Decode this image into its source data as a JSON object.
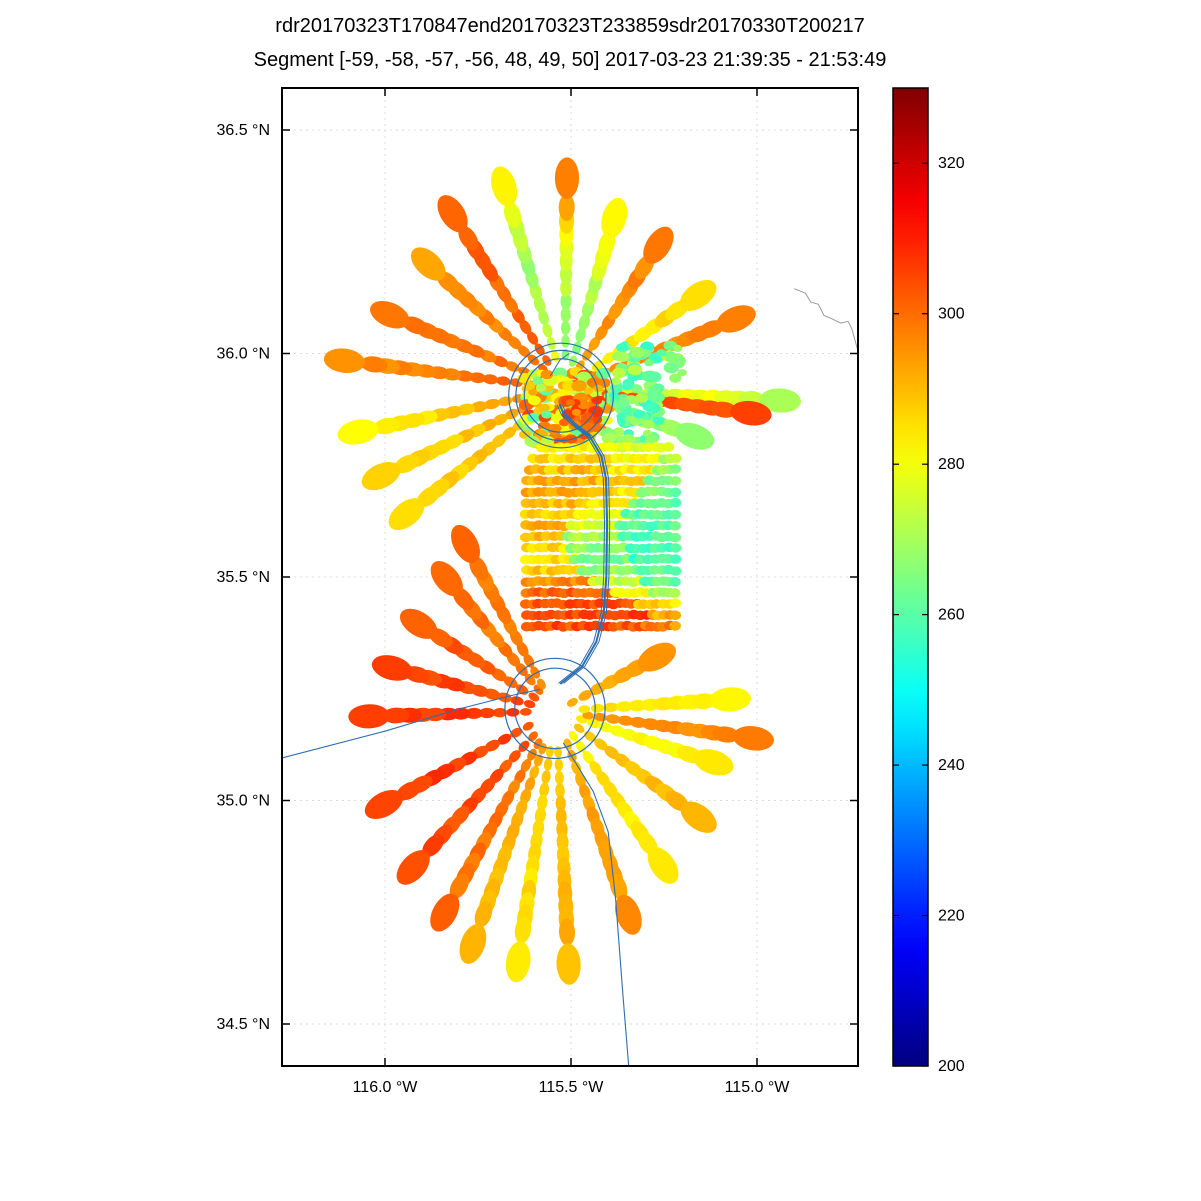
{
  "title": {
    "line1": "rdr20170323T170847end20170323T233859sdr20170330T200217",
    "line2": "Segment [-59, -58, -57, -56, 48, 49, 50] 2017-03-23 21:39:35 - 21:53:49"
  },
  "chart_data": {
    "type": "scatter",
    "projection": "lon-lat",
    "title": "rdr20170323T170847end20170323T233859sdr20170330T200217",
    "subtitle": "Segment [-59, -58, -57, -56, 48, 49, 50] 2017-03-23 21:39:35 - 21:53:49",
    "xlim_deg_w": [
      116.277,
      114.728
    ],
    "ylim_deg_n": [
      34.406,
      36.594
    ],
    "grid": "dotted-faint",
    "x_ticks": [
      {
        "value": 116.0,
        "label": "116.0 °W"
      },
      {
        "value": 115.5,
        "label": "115.5 °W"
      },
      {
        "value": 115.0,
        "label": "115.0 °W"
      }
    ],
    "y_ticks": [
      {
        "value": 36.5,
        "label": "36.5 °N"
      },
      {
        "value": 36.0,
        "label": "36.0 °N"
      },
      {
        "value": 35.5,
        "label": "35.5 °N"
      },
      {
        "value": 35.0,
        "label": "35.0 °N"
      },
      {
        "value": 34.5,
        "label": "34.5 °N"
      }
    ],
    "colorbar": {
      "colormap": "jet",
      "min": 200,
      "max": 330,
      "ticks": [
        320,
        300,
        280,
        260,
        240,
        220,
        200
      ],
      "position": "right"
    },
    "fans": [
      {
        "name": "upper-scan-fan",
        "center": [
          115.516,
          35.921
        ],
        "rays": [
          {
            "end": [
              116.081,
              35.981
            ],
            "vals": [
              303,
              300,
              298,
              296
            ]
          },
          {
            "end": [
              116.046,
              35.829
            ],
            "vals": [
              298,
              292,
              286,
              283
            ]
          },
          {
            "end": [
              115.987,
              35.735
            ],
            "vals": [
              296,
              291,
              287,
              285
            ]
          },
          {
            "end": [
              115.922,
              35.654
            ],
            "vals": [
              294,
              290,
              288,
              287
            ]
          },
          {
            "end": [
              115.965,
              36.079
            ],
            "vals": [
              301,
              299,
              298,
              297
            ]
          },
          {
            "end": [
              115.866,
              36.187
            ],
            "vals": [
              299,
              297,
              296,
              295
            ]
          },
          {
            "end": [
              115.804,
              36.294
            ],
            "vals": [
              301,
              300,
              301,
              302
            ]
          },
          {
            "end": [
              115.672,
              36.352
            ],
            "vals": [
              283,
              272,
              268,
              281
            ]
          },
          {
            "end": [
              115.511,
              36.37
            ],
            "vals": [
              270,
              265,
              278,
              297
            ]
          },
          {
            "end": [
              115.39,
              36.285
            ],
            "vals": [
              264,
              268,
              273,
              283
            ]
          },
          {
            "end": [
              115.277,
              36.227
            ],
            "vals": [
              290,
              294,
              296,
              297
            ]
          },
          {
            "end": [
              115.175,
              36.12
            ],
            "vals": [
              282,
              284,
              285,
              286
            ]
          },
          {
            "end": [
              115.078,
              36.07
            ],
            "vals": [
              292,
              295,
              296,
              297
            ]
          },
          {
            "end": [
              114.965,
              35.896
            ],
            "vals": [
              268,
              274,
              280,
              272
            ]
          },
          {
            "end": [
              115.04,
              35.869
            ],
            "vals": [
              298,
              301,
              303,
              304
            ]
          },
          {
            "end": [
              115.185,
              35.82
            ],
            "vals": [
              262,
              264,
              266,
              268
            ]
          }
        ]
      },
      {
        "name": "lower-scan-fan",
        "center": [
          115.54,
          35.2
        ],
        "rays": [
          {
            "end": [
              116.019,
              35.189
            ],
            "vals": [
              304,
              306,
              307,
              308
            ]
          },
          {
            "end": [
              115.96,
              35.292
            ],
            "vals": [
              302,
              304,
              305,
              306
            ]
          },
          {
            "end": [
              115.892,
              35.386
            ],
            "vals": [
              300,
              301,
              302,
              303
            ]
          },
          {
            "end": [
              115.82,
              35.482
            ],
            "vals": [
              297,
              298,
              299,
              300
            ]
          },
          {
            "end": [
              115.772,
              35.556
            ],
            "vals": [
              294,
              296,
              298,
              300
            ]
          },
          {
            "end": [
              115.981,
              35.001
            ],
            "vals": [
              304,
              305,
              306,
              307
            ]
          },
          {
            "end": [
              115.906,
              34.867
            ],
            "vals": [
              302,
              303,
              304,
              305
            ]
          },
          {
            "end": [
              115.825,
              34.771
            ],
            "vals": [
              297,
              298,
              299,
              300
            ]
          },
          {
            "end": [
              115.753,
              34.704
            ],
            "vals": [
              292,
              291,
              290,
              289
            ]
          },
          {
            "end": [
              115.637,
              34.666
            ],
            "vals": [
              288,
              287,
              286,
              285
            ]
          },
          {
            "end": [
              115.508,
              34.661
            ],
            "vals": [
              287,
              288,
              289,
              291
            ]
          },
          {
            "end": [
              115.355,
              34.766
            ],
            "vals": [
              290,
              292,
              294,
              295
            ]
          },
          {
            "end": [
              115.266,
              34.871
            ],
            "vals": [
              283,
              284,
              284,
              285
            ]
          },
          {
            "end": [
              115.175,
              34.974
            ],
            "vals": [
              286,
              288,
              289,
              290
            ]
          },
          {
            "end": [
              115.137,
              35.091
            ],
            "vals": [
              282,
              282,
              283,
              282
            ]
          },
          {
            "end": [
              115.035,
              35.142
            ],
            "vals": [
              293,
              295,
              296,
              297
            ]
          },
          {
            "end": [
              115.094,
              35.225
            ],
            "vals": [
              283,
              284,
              284,
              283
            ]
          },
          {
            "end": [
              115.282,
              35.315
            ],
            "vals": [
              290,
              292,
              293,
              293
            ]
          }
        ]
      }
    ],
    "grid_swath": {
      "lon_step": 0.017,
      "dot_rx": 5.8,
      "dot_ry": 4.8,
      "rows": [
        {
          "lat": 35.39,
          "segs": [
            [
              115.62,
              115.3,
              304
            ],
            [
              115.3,
              115.22,
              296
            ]
          ]
        },
        {
          "lat": 35.415,
          "segs": [
            [
              115.62,
              115.28,
              305
            ],
            [
              115.28,
              115.22,
              292
            ]
          ]
        },
        {
          "lat": 35.44,
          "segs": [
            [
              115.62,
              115.32,
              303
            ],
            [
              115.32,
              115.22,
              286
            ]
          ]
        },
        {
          "lat": 35.465,
          "segs": [
            [
              115.62,
              115.38,
              301
            ],
            [
              115.38,
              115.28,
              282
            ],
            [
              115.28,
              115.22,
              268
            ]
          ]
        },
        {
          "lat": 35.49,
          "segs": [
            [
              115.62,
              115.44,
              296
            ],
            [
              115.44,
              115.3,
              274
            ],
            [
              115.3,
              115.22,
              262
            ]
          ]
        },
        {
          "lat": 35.515,
          "segs": [
            [
              115.62,
              115.47,
              288
            ],
            [
              115.47,
              115.31,
              268
            ],
            [
              115.31,
              115.22,
              260
            ]
          ]
        },
        {
          "lat": 35.54,
          "segs": [
            [
              115.62,
              115.49,
              284
            ],
            [
              115.49,
              115.33,
              264
            ],
            [
              115.33,
              115.22,
              258
            ]
          ]
        },
        {
          "lat": 35.565,
          "segs": [
            [
              115.62,
              115.5,
              285
            ],
            [
              115.5,
              115.34,
              266
            ],
            [
              115.34,
              115.22,
              258
            ]
          ]
        },
        {
          "lat": 35.59,
          "segs": [
            [
              115.62,
              115.51,
              289
            ],
            [
              115.51,
              115.36,
              270
            ],
            [
              115.36,
              115.22,
              259
            ]
          ]
        },
        {
          "lat": 35.615,
          "segs": [
            [
              115.62,
              115.5,
              290
            ],
            [
              115.5,
              115.37,
              276
            ],
            [
              115.37,
              115.22,
              261
            ]
          ]
        },
        {
          "lat": 35.64,
          "segs": [
            [
              115.62,
              115.48,
              287
            ],
            [
              115.48,
              115.35,
              281
            ],
            [
              115.35,
              115.22,
              261
            ]
          ]
        },
        {
          "lat": 35.665,
          "segs": [
            [
              115.62,
              115.46,
              289
            ],
            [
              115.46,
              115.33,
              284
            ],
            [
              115.33,
              115.22,
              263
            ]
          ]
        },
        {
          "lat": 35.69,
          "segs": [
            [
              115.62,
              115.44,
              292
            ],
            [
              115.44,
              115.31,
              285
            ],
            [
              115.31,
              115.22,
              264
            ]
          ]
        },
        {
          "lat": 35.715,
          "segs": [
            [
              115.62,
              115.42,
              291
            ],
            [
              115.42,
              115.29,
              287
            ],
            [
              115.29,
              115.22,
              266
            ]
          ]
        },
        {
          "lat": 35.74,
          "segs": [
            [
              115.61,
              115.4,
              289
            ],
            [
              115.4,
              115.27,
              284
            ],
            [
              115.27,
              115.22,
              268
            ]
          ]
        },
        {
          "lat": 35.765,
          "segs": [
            [
              115.6,
              115.38,
              286
            ],
            [
              115.38,
              115.25,
              281
            ],
            [
              115.25,
              115.22,
              270
            ]
          ]
        },
        {
          "lat": 35.79,
          "segs": [
            [
              115.58,
              115.36,
              284
            ],
            [
              115.36,
              115.24,
              278
            ]
          ]
        }
      ]
    },
    "clusters": [
      {
        "lon_range": [
          115.63,
          115.4
        ],
        "lat_range": [
          35.8,
          35.96
        ],
        "n": 170,
        "val_range": [
          260,
          306
        ]
      },
      {
        "lon_range": [
          115.4,
          115.26
        ],
        "lat_range": [
          35.8,
          35.93
        ],
        "n": 70,
        "val_range": [
          254,
          272
        ]
      },
      {
        "lon_range": [
          115.52,
          115.43
        ],
        "lat_range": [
          35.83,
          35.9
        ],
        "n": 30,
        "val_range": [
          294,
          308
        ]
      },
      {
        "lon_range": [
          115.38,
          115.2
        ],
        "lat_range": [
          35.93,
          36.02
        ],
        "n": 45,
        "val_range": [
          256,
          274
        ]
      }
    ],
    "flight_track": {
      "color": "#2e6db4",
      "loops": [
        {
          "center": [
            115.527,
            35.906
          ],
          "radii_lat_deg": [
            0.082,
            0.101,
            0.117
          ]
        },
        {
          "center": [
            115.543,
            35.206
          ],
          "radii_lat_deg": [
            0.09,
            0.112
          ]
        }
      ],
      "paths": [
        {
          "name": "ferry-from-west",
          "width": 1.1,
          "points": [
            [
              116.277,
              35.095
            ],
            [
              116.0,
              35.155
            ],
            [
              115.8,
              35.205
            ],
            [
              115.66,
              35.235
            ],
            [
              115.585,
              35.248
            ]
          ]
        },
        {
          "name": "south-leg",
          "width": 1.1,
          "points": [
            [
              115.52,
              35.128
            ],
            [
              115.44,
              35.02
            ],
            [
              115.4,
              34.93
            ],
            [
              115.38,
              34.78
            ],
            [
              115.36,
              34.56
            ],
            [
              115.345,
              34.406
            ]
          ]
        },
        {
          "name": "north-leg",
          "width": 2.0,
          "passes": 3,
          "pass_offset_lon": 0.007,
          "points": [
            [
              115.527,
              35.262
            ],
            [
              115.47,
              35.3
            ],
            [
              115.432,
              35.355
            ],
            [
              115.412,
              35.42
            ],
            [
              115.405,
              35.5
            ],
            [
              115.403,
              35.62
            ],
            [
              115.406,
              35.72
            ],
            [
              115.418,
              35.77
            ],
            [
              115.45,
              35.815
            ],
            [
              115.49,
              35.84
            ],
            [
              115.518,
              35.862
            ],
            [
              115.53,
              35.885
            ]
          ]
        },
        {
          "name": "upper-loop-exit",
          "width": 1.0,
          "points": [
            [
              115.555,
              35.95
            ],
            [
              115.53,
              35.985
            ],
            [
              115.505,
              36.0
            ]
          ]
        }
      ]
    },
    "map_boundary": {
      "color": "#9a9a9a",
      "points": [
        [
          114.9,
          36.145
        ],
        [
          114.87,
          36.135
        ],
        [
          114.855,
          36.115
        ],
        [
          114.835,
          36.11
        ],
        [
          114.82,
          36.085
        ],
        [
          114.8,
          36.078
        ],
        [
          114.775,
          36.068
        ],
        [
          114.755,
          36.072
        ],
        [
          114.745,
          36.055
        ],
        [
          114.73,
          36.01
        ]
      ]
    }
  }
}
